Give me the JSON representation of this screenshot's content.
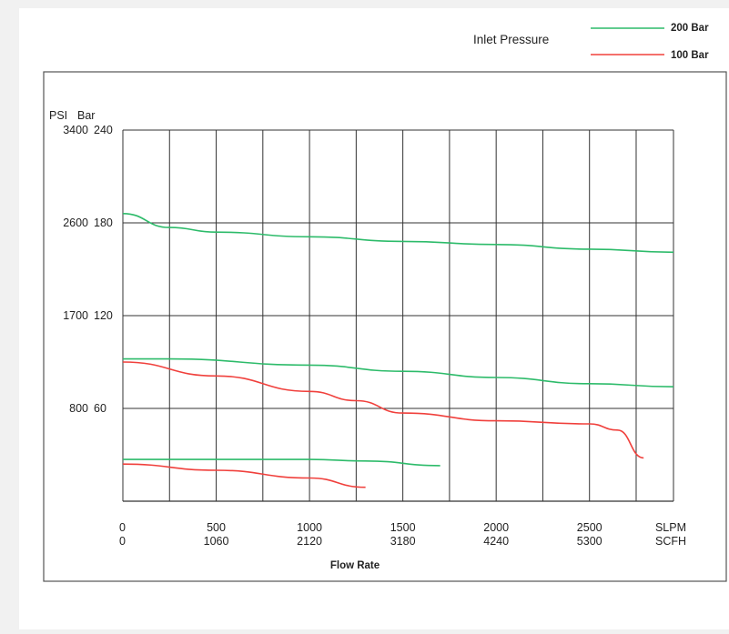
{
  "legend": {
    "title": "Inlet Pressure",
    "entries": [
      {
        "label": "200 Bar",
        "color": "#2dbb6a"
      },
      {
        "label": "100 Bar",
        "color": "#f0403c"
      }
    ]
  },
  "chart_data": {
    "type": "line",
    "title": "",
    "xlabel": "Flow Rate",
    "ylabel": "",
    "grid": true,
    "legend_position": "top-right",
    "x_unit_primary": "SLPM",
    "x_unit_secondary": "SCFH",
    "y_unit_primary": "PSI",
    "y_unit_secondary": "Bar",
    "xlim": [
      0,
      2950
    ],
    "ylim": [
      0,
      240
    ],
    "x_ticks_primary": [
      "0",
      "500",
      "1000",
      "1500",
      "2000",
      "2500"
    ],
    "x_ticks_secondary": [
      "0",
      "1060",
      "2120",
      "3180",
      "4240",
      "5300"
    ],
    "x_tick_values": [
      0,
      500,
      1000,
      1500,
      2000,
      2500
    ],
    "y_ticks_primary": [
      "800",
      "1700",
      "2600",
      "3400"
    ],
    "y_ticks_secondary": [
      "60",
      "120",
      "180",
      "240"
    ],
    "y_tick_values": [
      60,
      120,
      180,
      240
    ],
    "x_gridlines": [
      0,
      250,
      500,
      750,
      1000,
      1250,
      1500,
      1750,
      2000,
      2250,
      2500,
      2750,
      2950
    ],
    "y_gridlines": [
      60,
      120,
      180,
      240
    ],
    "series": [
      {
        "name": "200 Bar",
        "color": "#2dbb6a",
        "x": [
          0,
          250,
          500,
          1000,
          1500,
          2000,
          2500,
          2950
        ],
        "y": [
          186,
          177,
          174,
          171,
          168,
          166,
          163,
          161
        ]
      },
      {
        "name": "100 Bar",
        "color": "#f0403c",
        "x": [
          0,
          500,
          1000,
          1250,
          1500,
          2000,
          2500,
          2650,
          2790
        ],
        "y": [
          90,
          81,
          71,
          65,
          57,
          52,
          50,
          46,
          28
        ]
      },
      {
        "name": "200 Bar",
        "color": "#2dbb6a",
        "x": [
          0,
          250,
          1000,
          1500,
          2000,
          2500,
          2950
        ],
        "y": [
          92,
          92,
          88,
          84,
          80,
          76,
          74
        ]
      },
      {
        "name": "100 Bar",
        "color": "#f0403c",
        "x": [
          0,
          500,
          1000,
          1300
        ],
        "y": [
          24,
          20,
          15,
          9
        ]
      },
      {
        "name": "200 Bar",
        "color": "#2dbb6a",
        "x": [
          0,
          500,
          1000,
          1300,
          1700
        ],
        "y": [
          27,
          27,
          27,
          26,
          23
        ]
      }
    ]
  }
}
